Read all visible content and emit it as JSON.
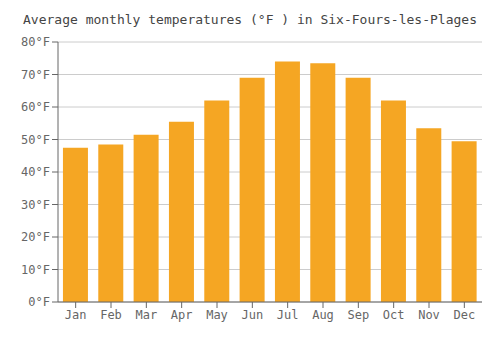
{
  "chart_data": {
    "type": "bar",
    "title": "Average monthly temperatures (°F ) in Six-Fours-les-Plages",
    "categories": [
      "Jan",
      "Feb",
      "Mar",
      "Apr",
      "May",
      "Jun",
      "Jul",
      "Aug",
      "Sep",
      "Oct",
      "Nov",
      "Dec"
    ],
    "values": [
      47.5,
      48.5,
      51.5,
      55.5,
      62.0,
      69.0,
      74.0,
      73.5,
      69.0,
      62.0,
      53.5,
      49.5
    ],
    "color": "#F5A623",
    "ylim": [
      0,
      80
    ],
    "yticks": [
      {
        "value": 0,
        "label": "0°F"
      },
      {
        "value": 10,
        "label": "10°F"
      },
      {
        "value": 20,
        "label": "20°F"
      },
      {
        "value": 30,
        "label": "30°F"
      },
      {
        "value": 40,
        "label": "40°F"
      },
      {
        "value": 50,
        "label": "50°F"
      },
      {
        "value": 60,
        "label": "60°F"
      },
      {
        "value": 70,
        "label": "70°F"
      },
      {
        "value": 80,
        "label": "80°F"
      }
    ],
    "grid": true
  }
}
